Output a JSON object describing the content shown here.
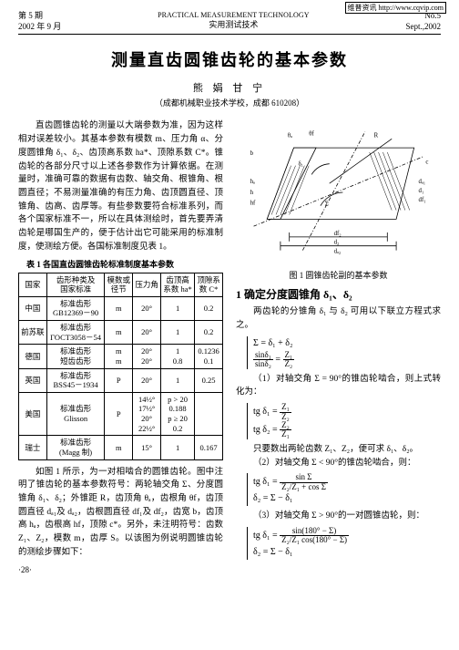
{
  "watermark": "维普资讯 http://www.cqvip.com",
  "header": {
    "left_top": "第 5 期",
    "left_bottom": "2002 年 9 月",
    "center_en": "PRACTICAL MEASUREMENT TECHNOLOGY",
    "center_cn": "实用测试技术",
    "right_top": "No.5",
    "right_bottom": "Sept.,2002"
  },
  "title": "测量直齿圆锥齿轮的基本参数",
  "author": "熊 娟 甘 宁",
  "affiliation": "（成都机械职业技术学校，成都 610208）",
  "intro_para": "直齿圆锥齿轮的测量以大端参数为准，因为这样相对误差较小。其基本参数有模数 m、压力角 α、分度圆锥角 δ₁、δ₂、齿顶高系数 ha*、顶隙系数 C*。锥齿轮的各部分尺寸以上述各参数作为计算依据。在测量时，准确可靠的数据有齿数、轴交角、根锥角、根圆直径；不易测量准确的有压力角、齿顶圆直径、顶锥角、齿高、齿厚等。有些参数要符合标准系列，而各个国家标准不一，所以在具体测绘时，首先要弄清齿轮是哪国生产的，便于估计出它可能采用的标准制度，使测绘方便。各国标准制度见表 1。",
  "table1": {
    "caption": "表 1  各国直齿圆锥齿轮标准制度基本参数",
    "headers": [
      "国家",
      "齿形种类及\n国家标准",
      "模数或\n径节",
      "压力角",
      "齿顶高\n系数 ha*",
      "顶隙系\n数 C*"
    ],
    "rows": [
      [
        "中国",
        "标准齿形\nGB12369－90",
        "m",
        "20°",
        "1",
        "0.2"
      ],
      [
        "前苏联",
        "标准齿形\nГОСТ3058－54",
        "m",
        "20°",
        "1",
        "0.2"
      ],
      [
        "德国",
        "标准齿形\n短齿齿形",
        "m\nm",
        "20°\n20°",
        "1\n0.8",
        "0.1236\n0.1"
      ],
      [
        "英国",
        "标准齿形\nBSS45－1934",
        "P",
        "20°",
        "1",
        "0.25"
      ],
      [
        "美国",
        "标准齿形\nGlisson",
        "P",
        "14½°\n17½°\n20°\n22½°",
        "p > 20\n0.188\np ≥ 20\n0.2",
        ""
      ],
      [
        "瑞士",
        "标准齿形\n(Magg 制)",
        "m",
        "15°",
        "1",
        "0.167"
      ]
    ]
  },
  "after_table_para": "如图 1 所示，为一对相啮合的圆锥齿轮。图中注明了锥齿轮的基本参数符号：两轮轴交角 Σ、分度圆锥角 δ₁、δ₂；外锥距 R，齿顶角 θₐ，齿根角 θf，齿顶圆直径 dₐ₁及 dₐ₂，齿根圆直径 df₁及 df₂，齿宽 b，齿顶高 hₐ，齿根高 hf，顶隙 c*。另外，未注明符号：齿数 Z₁、Z₂，模数 m，齿厚 S。以该图为例说明圆锥齿轮的测绘步骤如下：",
  "fig_caption": "图 1  圆锥齿轮副的基本参数",
  "section1": {
    "heading": "1  确定分度圆锥角 δ₁、δ₂",
    "p1": "两齿轮的分锥角 δ₁ 与 δ₂ 可用以下联立方程式求之。",
    "eq1a": "Σ = δ₁ + δ₂",
    "eq1b_l": "sinδ₁",
    "eq1b_r1": "Z₁",
    "eq1b_r2": "sinδ₂",
    "eq1b_r3": "Z₂",
    "p2": "（1）对轴交角 Σ = 90°的锥齿轮啮合，则上式转化为：",
    "eq2_l1": "tg δ₁ =",
    "eq2_r1n": "Z₁",
    "eq2_r1d": "Z₂",
    "eq2_l2": "tg δ₂ =",
    "eq2_r2n": "Z₂",
    "eq2_r2d": "Z₁",
    "p3": "只要数出两轮齿数 Z₁、Z₂，便可求 δ₁、δ₂。",
    "p4": "（2）对轴交角 Σ < 90°的锥齿轮啮合，则：",
    "eq3_l": "tg δ₁ =",
    "eq3_rn": "sin Σ",
    "eq3_rd": "Z₂/Z₁ + cos Σ",
    "eq3_2": "δ₂ = Σ − δ₁",
    "p5": "（3）对轴交角 Σ > 90°的一对圆锥齿轮，则：",
    "eq4_l": "tg δ₁ =",
    "eq4_rn": "sin(180° − Σ)",
    "eq4_rd": "Z₂/Z₁ cos(180° − Σ)",
    "eq4_2": "δ₂ = Σ − δ₁"
  },
  "page_num": "·28·"
}
